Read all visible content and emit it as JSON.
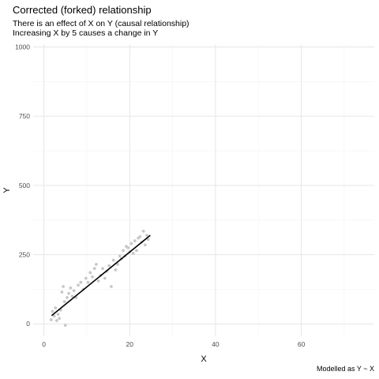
{
  "chart_data": {
    "type": "scatter",
    "title": "Corrected (forked) relationship",
    "subtitle_lines": [
      "There is an effect of X on Y (causal relationship)",
      "Increasing X by 5 causes a change in Y"
    ],
    "caption": "Modelled as Y ~ X",
    "xlabel": "X",
    "ylabel": "Y",
    "xlim": [
      -2.5,
      77
    ],
    "ylim": [
      -45,
      1010
    ],
    "xticks": [
      0,
      20,
      40,
      60
    ],
    "yticks": [
      0,
      250,
      500,
      750,
      1000
    ],
    "grid": true,
    "point_color": "#c8c8c8",
    "line_color": "#000000",
    "fit_line": {
      "x": [
        1.8,
        24.8
      ],
      "y": [
        30,
        320
      ]
    },
    "points": [
      [
        1.7,
        15
      ],
      [
        2.0,
        45
      ],
      [
        2.4,
        28
      ],
      [
        2.7,
        58
      ],
      [
        3.0,
        12
      ],
      [
        3.3,
        35
      ],
      [
        3.6,
        20
      ],
      [
        3.9,
        50
      ],
      [
        4.2,
        115
      ],
      [
        4.5,
        135
      ],
      [
        4.8,
        80
      ],
      [
        5.0,
        -5
      ],
      [
        5.4,
        95
      ],
      [
        5.8,
        110
      ],
      [
        6.2,
        130
      ],
      [
        6.6,
        100
      ],
      [
        7.0,
        120
      ],
      [
        7.5,
        95
      ],
      [
        8.0,
        140
      ],
      [
        8.6,
        150
      ],
      [
        9.2,
        125
      ],
      [
        9.8,
        165
      ],
      [
        10.3,
        150
      ],
      [
        10.8,
        185
      ],
      [
        11.3,
        170
      ],
      [
        11.8,
        200
      ],
      [
        12.2,
        215
      ],
      [
        12.7,
        155
      ],
      [
        13.2,
        175
      ],
      [
        13.7,
        200
      ],
      [
        14.2,
        165
      ],
      [
        14.7,
        190
      ],
      [
        15.2,
        210
      ],
      [
        15.7,
        135
      ],
      [
        16.2,
        230
      ],
      [
        16.7,
        195
      ],
      [
        17.2,
        215
      ],
      [
        17.7,
        245
      ],
      [
        18.1,
        235
      ],
      [
        18.5,
        265
      ],
      [
        18.9,
        245
      ],
      [
        19.2,
        280
      ],
      [
        19.6,
        275
      ],
      [
        20.0,
        260
      ],
      [
        20.4,
        290
      ],
      [
        20.8,
        255
      ],
      [
        21.2,
        300
      ],
      [
        21.6,
        265
      ],
      [
        22.0,
        310
      ],
      [
        22.4,
        315
      ],
      [
        22.8,
        295
      ],
      [
        23.2,
        335
      ],
      [
        23.6,
        285
      ],
      [
        24.0,
        320
      ],
      [
        24.3,
        305
      ]
    ]
  }
}
